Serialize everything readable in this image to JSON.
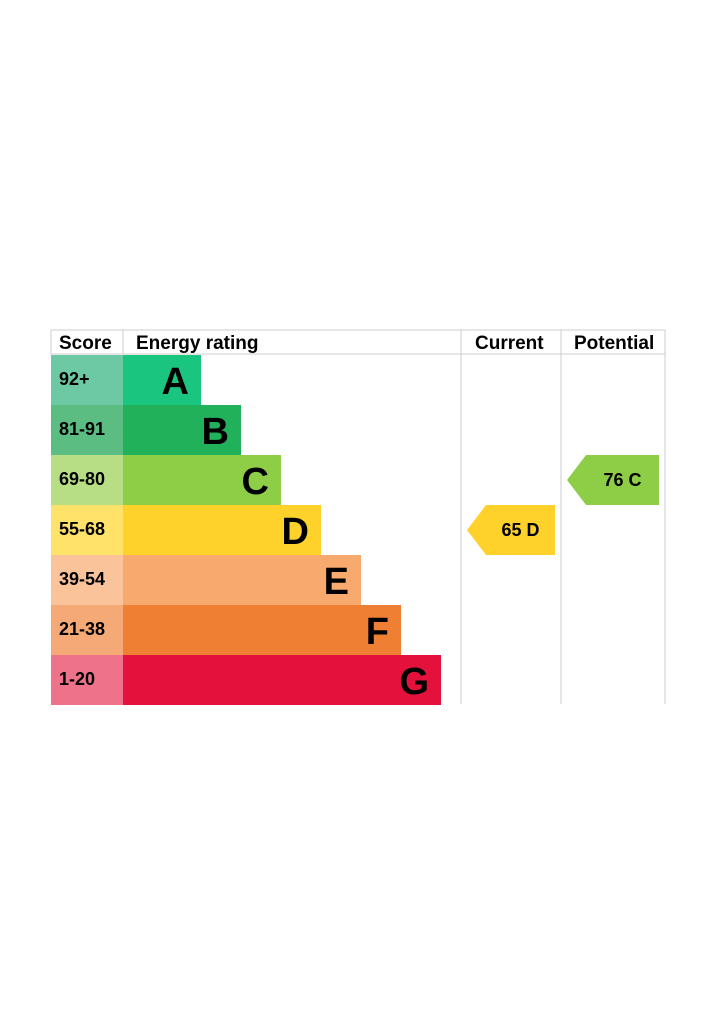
{
  "headers": {
    "score": "Score",
    "energy_rating": "Energy rating",
    "current": "Current",
    "potential": "Potential"
  },
  "chart_data": {
    "type": "bar",
    "bands": [
      {
        "letter": "A",
        "range": "92+",
        "color": "#1ac57f",
        "score_color": "#6cc9a3"
      },
      {
        "letter": "B",
        "range": "81-91",
        "color": "#20b15a",
        "score_color": "#5cbd82"
      },
      {
        "letter": "C",
        "range": "69-80",
        "color": "#8dce46",
        "score_color": "#b7de85"
      },
      {
        "letter": "D",
        "range": "55-68",
        "color": "#ffd22b",
        "score_color": "#ffe26a"
      },
      {
        "letter": "E",
        "range": "39-54",
        "color": "#f8a96d",
        "score_color": "#fac39a"
      },
      {
        "letter": "F",
        "range": "21-38",
        "color": "#ef8033",
        "score_color": "#f4a977"
      },
      {
        "letter": "G",
        "range": "1-20",
        "color": "#e4113d",
        "score_color": "#ee7289"
      }
    ],
    "current": {
      "value": 65,
      "letter": "D",
      "color": "#ffd22b"
    },
    "potential": {
      "value": 76,
      "letter": "C",
      "color": "#8dce46"
    }
  }
}
